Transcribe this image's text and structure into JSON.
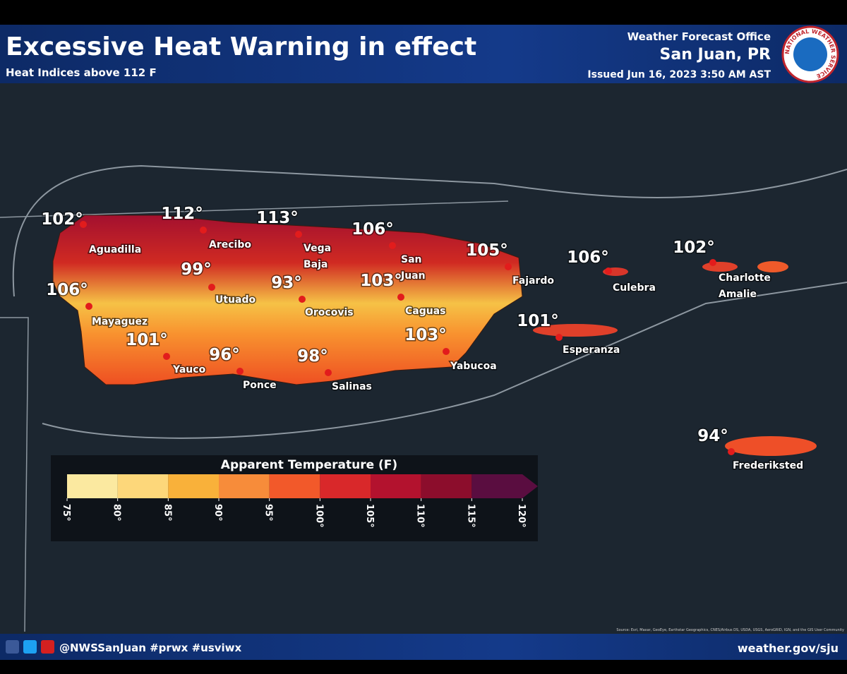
{
  "header": {
    "title": "Excessive Heat Warning in effect",
    "subtitle": "Heat Indices above 112 F",
    "office": "Weather Forecast Office",
    "location": "San Juan, PR",
    "issued": "Issued Jun 16, 2023 3:50 AM AST",
    "logo": "NATIONAL WEATHER SERVICE"
  },
  "map": {
    "temperatures": [
      "102°",
      "112°",
      "113°",
      "106°",
      "105°",
      "106°",
      "102°",
      "106°",
      "99°",
      "93°",
      "103°",
      "101°",
      "101°",
      "96°",
      "98°",
      "103°",
      "94°"
    ],
    "places": [
      [
        "Aguadilla"
      ],
      [
        "Arecibo"
      ],
      [
        "Vega",
        "Baja"
      ],
      [
        "San",
        "Juan"
      ],
      [
        "Mayaguez"
      ],
      [
        "Utuado"
      ],
      [
        "Orocovis"
      ],
      [
        "Caguas"
      ],
      [
        "Yauco"
      ],
      [
        "Ponce"
      ],
      [
        "Salinas"
      ],
      [
        "Yabucoa"
      ],
      [
        "Fajardo"
      ],
      [
        "Culebra"
      ],
      [
        "Charlotte",
        "Amalie"
      ],
      [
        "Esperanza"
      ],
      [
        "Frederiksted"
      ]
    ]
  },
  "legend": {
    "title": "Apparent Temperature (F)",
    "ticks": [
      {
        "value": 75,
        "label": "75°"
      },
      {
        "value": 80,
        "label": "80°"
      },
      {
        "value": 85,
        "label": "85°"
      },
      {
        "value": 90,
        "label": "90°"
      },
      {
        "value": 95,
        "label": "95°"
      },
      {
        "value": 100,
        "label": "100°"
      },
      {
        "value": 105,
        "label": "105°"
      },
      {
        "value": 110,
        "label": "110°"
      },
      {
        "value": 115,
        "label": "115°"
      },
      {
        "value": 120,
        "label": "120°"
      }
    ],
    "colors": [
      "#fbe9a0",
      "#fdd77a",
      "#f9b13a",
      "#f78c3a",
      "#f2592a",
      "#d9282a",
      "#b3122e",
      "#8c0d2c",
      "#5a0d40"
    ]
  },
  "footer": {
    "social": "@NWSSanJuan #prwx #usviwx",
    "url": "weather.gov/sju",
    "source": "Source: Esri, Maxar, GeoEye, Earthstar Geographics, CNES/Airbus DS, USDA, USGS, AeroGRID, IGN, and the GIS User Community"
  }
}
